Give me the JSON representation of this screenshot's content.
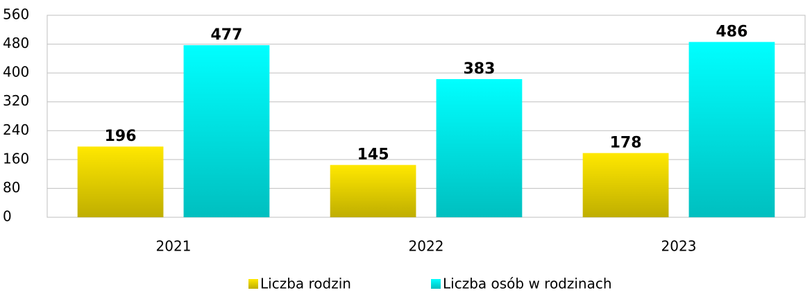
{
  "chart_data": {
    "type": "bar",
    "categories": [
      "2021",
      "2022",
      "2023"
    ],
    "series": [
      {
        "name": "Liczba rodzin",
        "color": "#ffe800",
        "values": [
          196,
          145,
          178
        ]
      },
      {
        "name": "Liczba osób w rodzinach",
        "color": "#00ffff",
        "values": [
          477,
          383,
          486
        ]
      }
    ],
    "ylim": [
      0,
      560
    ],
    "yticks": [
      0,
      80,
      160,
      240,
      320,
      400,
      480,
      560
    ],
    "grid": true,
    "legend": "bottom"
  }
}
